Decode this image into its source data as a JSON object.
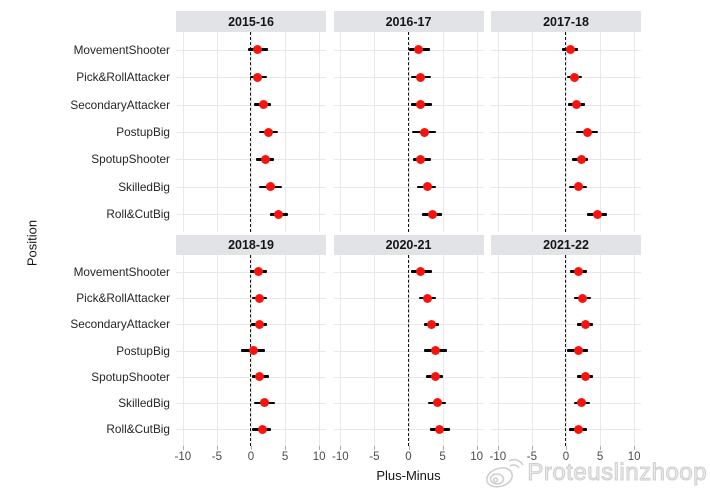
{
  "figure": {
    "x_ticks": [
      -10,
      -5,
      0,
      5,
      10
    ],
    "x_tick_labels": [
      "-10",
      "-5",
      "0",
      "5",
      "10"
    ],
    "x_domain": [
      -11,
      11
    ],
    "reference_line_x": 0
  },
  "watermark": {
    "text": "Proteuslinzhoop",
    "icon": "weibo-logo-icon"
  },
  "colors": {
    "point": "#f8130d",
    "strip_bg": "#e2e3e7",
    "gridline": "#e8e8e8",
    "watermark": "#cfcfcf"
  },
  "chart_data": {
    "type": "scatter",
    "subtype": "pointrange-dotplot",
    "orientation": "horizontal",
    "xlabel": "Plus-Minus",
    "ylabel": "Position",
    "xlim": [
      -11,
      11
    ],
    "grid": true,
    "reference_line": 0,
    "legend_position": "none",
    "categories": [
      "MovementShooter",
      "Pick&RollAttacker",
      "SecondaryAttacker",
      "PostupBig",
      "SpotupShooter",
      "SkilledBig",
      "Roll&CutBig"
    ],
    "facets": [
      {
        "season": "2015-16",
        "points": [
          {
            "x": 1.0,
            "lo": -0.5,
            "hi": 2.5
          },
          {
            "x": 1.0,
            "lo": -0.2,
            "hi": 2.3
          },
          {
            "x": 1.8,
            "lo": 0.4,
            "hi": 3.0
          },
          {
            "x": 2.6,
            "lo": 1.1,
            "hi": 4.0
          },
          {
            "x": 2.1,
            "lo": 0.8,
            "hi": 3.4
          },
          {
            "x": 2.8,
            "lo": 1.2,
            "hi": 4.6
          },
          {
            "x": 4.1,
            "lo": 2.8,
            "hi": 5.5
          }
        ]
      },
      {
        "season": "2016-17",
        "points": [
          {
            "x": 1.5,
            "lo": 0.0,
            "hi": 3.2
          },
          {
            "x": 1.7,
            "lo": 0.3,
            "hi": 3.3
          },
          {
            "x": 1.8,
            "lo": 0.3,
            "hi": 3.4
          },
          {
            "x": 2.3,
            "lo": 0.5,
            "hi": 4.0
          },
          {
            "x": 1.8,
            "lo": 0.6,
            "hi": 3.3
          },
          {
            "x": 2.8,
            "lo": 1.2,
            "hi": 4.1
          },
          {
            "x": 3.5,
            "lo": 2.0,
            "hi": 4.9
          }
        ]
      },
      {
        "season": "2017-18",
        "points": [
          {
            "x": 0.7,
            "lo": -0.6,
            "hi": 1.8
          },
          {
            "x": 1.3,
            "lo": 0.1,
            "hi": 2.3
          },
          {
            "x": 1.6,
            "lo": 0.3,
            "hi": 2.8
          },
          {
            "x": 3.1,
            "lo": 1.5,
            "hi": 4.7
          },
          {
            "x": 2.2,
            "lo": 0.9,
            "hi": 3.3
          },
          {
            "x": 1.8,
            "lo": 0.4,
            "hi": 3.1
          },
          {
            "x": 4.6,
            "lo": 3.1,
            "hi": 6.0
          }
        ]
      },
      {
        "season": "2018-19",
        "points": [
          {
            "x": 1.1,
            "lo": -0.1,
            "hi": 2.3
          },
          {
            "x": 1.3,
            "lo": 0.1,
            "hi": 2.4
          },
          {
            "x": 1.3,
            "lo": 0.0,
            "hi": 2.4
          },
          {
            "x": 0.4,
            "lo": -1.4,
            "hi": 2.0
          },
          {
            "x": 1.3,
            "lo": 0.1,
            "hi": 2.6
          },
          {
            "x": 2.0,
            "lo": 0.4,
            "hi": 3.5
          },
          {
            "x": 1.7,
            "lo": 0.1,
            "hi": 2.9
          }
        ]
      },
      {
        "season": "2020-21",
        "points": [
          {
            "x": 1.8,
            "lo": 0.3,
            "hi": 3.4
          },
          {
            "x": 2.8,
            "lo": 1.6,
            "hi": 4.1
          },
          {
            "x": 3.4,
            "lo": 2.3,
            "hi": 4.5
          },
          {
            "x": 3.9,
            "lo": 2.2,
            "hi": 5.7
          },
          {
            "x": 3.9,
            "lo": 2.6,
            "hi": 5.0
          },
          {
            "x": 4.2,
            "lo": 2.8,
            "hi": 5.5
          },
          {
            "x": 4.6,
            "lo": 3.2,
            "hi": 6.1
          }
        ]
      },
      {
        "season": "2021-22",
        "points": [
          {
            "x": 1.8,
            "lo": 0.6,
            "hi": 3.1
          },
          {
            "x": 2.4,
            "lo": 1.1,
            "hi": 3.7
          },
          {
            "x": 2.8,
            "lo": 1.6,
            "hi": 4.0
          },
          {
            "x": 1.8,
            "lo": 0.1,
            "hi": 3.3
          },
          {
            "x": 2.8,
            "lo": 1.6,
            "hi": 3.9
          },
          {
            "x": 2.3,
            "lo": 1.2,
            "hi": 3.5
          },
          {
            "x": 1.8,
            "lo": 0.5,
            "hi": 3.1
          }
        ]
      }
    ]
  }
}
